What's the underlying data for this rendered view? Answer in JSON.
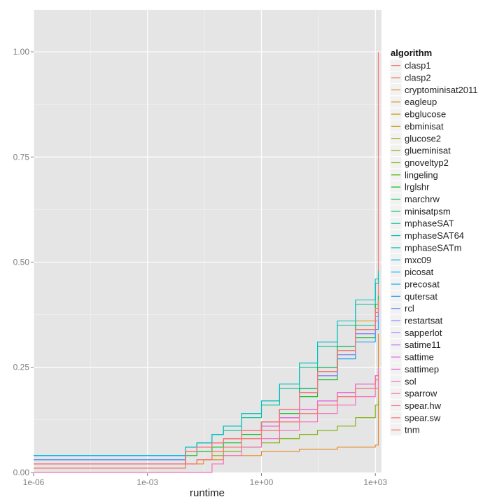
{
  "chart_data": {
    "type": "line",
    "step": true,
    "xlabel": "runtime",
    "ylabel": "",
    "x_scale": "log10",
    "xlim": [
      1e-06,
      1450
    ],
    "ylim": [
      -0.002,
      1.1
    ],
    "x_ticks": [
      {
        "value": 1e-06,
        "label": "1e-06"
      },
      {
        "value": 0.001,
        "label": "1e-03"
      },
      {
        "value": 1,
        "label": "1e+00"
      },
      {
        "value": 1000,
        "label": "1e+03"
      }
    ],
    "y_ticks": [
      {
        "value": 0,
        "label": "0.00"
      },
      {
        "value": 0.25,
        "label": "0.25"
      },
      {
        "value": 0.5,
        "label": "0.50"
      },
      {
        "value": 0.75,
        "label": "0.75"
      },
      {
        "value": 1.0,
        "label": "1.00"
      }
    ],
    "grid": true,
    "background": "#e5e5e5",
    "legend": {
      "title": "algorithm",
      "placement": "right"
    },
    "series": [
      {
        "name": "clasp1",
        "color": "#F8766D",
        "x": [
          1e-06,
          0.01,
          0.02,
          0.05,
          0.1,
          0.3,
          1,
          3,
          10,
          30,
          100,
          300,
          1000,
          1200,
          1200
        ],
        "y": [
          0.02,
          0.05,
          0.06,
          0.07,
          0.08,
          0.1,
          0.12,
          0.15,
          0.2,
          0.25,
          0.3,
          0.36,
          0.4,
          0.42,
          1.0
        ]
      },
      {
        "name": "clasp2",
        "color": "#F17C4A",
        "x": [
          1e-06,
          0.01,
          0.02,
          0.05,
          0.1,
          0.3,
          1,
          3,
          10,
          30,
          100,
          300,
          1000,
          1200
        ],
        "y": [
          0.02,
          0.05,
          0.06,
          0.07,
          0.08,
          0.1,
          0.12,
          0.15,
          0.19,
          0.24,
          0.29,
          0.35,
          0.39,
          0.41
        ]
      },
      {
        "name": "cryptominisat2011",
        "color": "#E7851E",
        "x": [
          1e-06,
          0.01,
          0.03,
          0.1,
          1,
          10,
          100,
          1000,
          1200,
          1200
        ],
        "y": [
          0.01,
          0.02,
          0.03,
          0.04,
          0.05,
          0.055,
          0.06,
          0.065,
          0.07,
          0.33
        ]
      },
      {
        "name": "eagleup",
        "color": "#DB8E00",
        "x": [
          1e-06,
          0.01,
          0.02,
          0.05,
          0.1,
          0.3,
          1,
          3,
          10,
          30,
          100,
          300,
          1000,
          1200
        ],
        "y": [
          0.02,
          0.05,
          0.06,
          0.07,
          0.08,
          0.1,
          0.12,
          0.15,
          0.19,
          0.24,
          0.3,
          0.36,
          0.4,
          0.42
        ]
      },
      {
        "name": "ebglucose",
        "color": "#CD9600",
        "x": [
          1e-06,
          0.01,
          0.02,
          0.05,
          0.1,
          0.3,
          1,
          3,
          10,
          30,
          100,
          300,
          1000,
          1200
        ],
        "y": [
          0.02,
          0.05,
          0.06,
          0.07,
          0.08,
          0.1,
          0.12,
          0.15,
          0.2,
          0.24,
          0.29,
          0.34,
          0.38,
          0.4
        ]
      },
      {
        "name": "ebminisat",
        "color": "#BE9C00",
        "x": [
          1e-06,
          0.01,
          0.02,
          0.05,
          0.1,
          0.3,
          1,
          3,
          10,
          30,
          100,
          300,
          1000,
          1200
        ],
        "y": [
          0.02,
          0.05,
          0.06,
          0.07,
          0.08,
          0.1,
          0.12,
          0.15,
          0.19,
          0.23,
          0.28,
          0.33,
          0.37,
          0.39
        ]
      },
      {
        "name": "glucose2",
        "color": "#ABA300",
        "x": [
          1e-06,
          0.01,
          0.02,
          0.05,
          0.1,
          0.3,
          1,
          3,
          10,
          30,
          100,
          300,
          1000,
          1200
        ],
        "y": [
          0.02,
          0.05,
          0.06,
          0.07,
          0.08,
          0.1,
          0.12,
          0.15,
          0.2,
          0.25,
          0.3,
          0.35,
          0.39,
          0.41
        ]
      },
      {
        "name": "glueminisat",
        "color": "#96A900",
        "x": [
          1e-06,
          0.01,
          0.02,
          0.05,
          0.1,
          0.3,
          1,
          3,
          10,
          30,
          100,
          300,
          1000,
          1200
        ],
        "y": [
          0.02,
          0.05,
          0.06,
          0.07,
          0.08,
          0.1,
          0.12,
          0.15,
          0.2,
          0.24,
          0.29,
          0.34,
          0.38,
          0.4
        ]
      },
      {
        "name": "gnoveltyp2",
        "color": "#7BAE00",
        "x": [
          1e-06,
          0.01,
          0.02,
          0.05,
          0.1,
          0.3,
          1,
          3,
          10,
          30,
          100,
          300,
          1000,
          1200
        ],
        "y": [
          0.01,
          0.02,
          0.03,
          0.04,
          0.05,
          0.06,
          0.07,
          0.08,
          0.09,
          0.1,
          0.11,
          0.13,
          0.16,
          0.17
        ]
      },
      {
        "name": "lingeling",
        "color": "#53B400",
        "x": [
          1e-06,
          0.01,
          0.02,
          0.05,
          0.1,
          0.3,
          1,
          3,
          10,
          30,
          100,
          300,
          1000,
          1200
        ],
        "y": [
          0.02,
          0.05,
          0.06,
          0.07,
          0.08,
          0.1,
          0.12,
          0.15,
          0.2,
          0.25,
          0.3,
          0.35,
          0.4,
          0.42
        ]
      },
      {
        "name": "lrglshr",
        "color": "#00B816",
        "x": [
          1e-06,
          0.01,
          0.02,
          0.05,
          0.1,
          0.3,
          1,
          3,
          10,
          30,
          100,
          300,
          1000,
          1200
        ],
        "y": [
          0.02,
          0.04,
          0.05,
          0.06,
          0.07,
          0.09,
          0.11,
          0.14,
          0.18,
          0.22,
          0.27,
          0.32,
          0.36,
          0.38
        ]
      },
      {
        "name": "marchrw",
        "color": "#00BC51",
        "x": [
          1e-06,
          0.01,
          0.02,
          0.05,
          0.1,
          0.3,
          1,
          3,
          10,
          30,
          100,
          300,
          1000,
          1200
        ],
        "y": [
          0.03,
          0.05,
          0.06,
          0.07,
          0.08,
          0.1,
          0.12,
          0.15,
          0.2,
          0.24,
          0.29,
          0.34,
          0.39,
          0.41
        ]
      },
      {
        "name": "minisatpsm",
        "color": "#00BE74",
        "x": [
          1e-06,
          0.01,
          0.02,
          0.05,
          0.1,
          0.3,
          1,
          3,
          10,
          30,
          100,
          300,
          1000,
          1200
        ],
        "y": [
          0.03,
          0.05,
          0.06,
          0.07,
          0.08,
          0.1,
          0.12,
          0.15,
          0.2,
          0.25,
          0.3,
          0.35,
          0.4,
          0.42
        ]
      },
      {
        "name": "mphaseSAT",
        "color": "#00C092",
        "x": [
          1e-06,
          0.01,
          0.02,
          0.05,
          0.1,
          0.3,
          1,
          3,
          10,
          30,
          100,
          300,
          1000,
          1200
        ],
        "y": [
          0.04,
          0.06,
          0.07,
          0.09,
          0.1,
          0.13,
          0.16,
          0.2,
          0.25,
          0.3,
          0.35,
          0.4,
          0.45,
          0.47
        ]
      },
      {
        "name": "mphaseSAT64",
        "color": "#00C0AC",
        "x": [
          1e-06,
          0.01,
          0.02,
          0.05,
          0.1,
          0.3,
          1,
          3,
          10,
          30,
          100,
          300,
          1000,
          1200
        ],
        "y": [
          0.04,
          0.06,
          0.07,
          0.09,
          0.11,
          0.14,
          0.17,
          0.21,
          0.26,
          0.31,
          0.36,
          0.41,
          0.45,
          0.47
        ]
      },
      {
        "name": "mphaseSATm",
        "color": "#00BEC4",
        "x": [
          1e-06,
          0.01,
          0.02,
          0.05,
          0.1,
          0.3,
          1,
          3,
          10,
          30,
          100,
          300,
          1000,
          1200
        ],
        "y": [
          0.04,
          0.06,
          0.07,
          0.09,
          0.11,
          0.14,
          0.17,
          0.21,
          0.26,
          0.31,
          0.36,
          0.41,
          0.46,
          0.48
        ]
      },
      {
        "name": "mxc09",
        "color": "#00BAD9",
        "x": [
          1e-06,
          0.01,
          0.02,
          0.05,
          0.1,
          0.3,
          1,
          3,
          10,
          30,
          100,
          300,
          1000,
          1200
        ],
        "y": [
          0.03,
          0.05,
          0.06,
          0.07,
          0.08,
          0.1,
          0.12,
          0.15,
          0.19,
          0.23,
          0.28,
          0.33,
          0.37,
          0.39
        ]
      },
      {
        "name": "picosat",
        "color": "#00B3EC",
        "x": [
          1e-06,
          0.01,
          0.02,
          0.05,
          0.1,
          0.3,
          1,
          3,
          10,
          30,
          100,
          300,
          1000,
          1200
        ],
        "y": [
          0.04,
          0.05,
          0.06,
          0.07,
          0.08,
          0.1,
          0.12,
          0.15,
          0.19,
          0.23,
          0.28,
          0.33,
          0.37,
          0.38
        ]
      },
      {
        "name": "precosat",
        "color": "#00A9FA",
        "x": [
          1e-06,
          0.01,
          0.02,
          0.05,
          0.1,
          0.3,
          1,
          3,
          10,
          30,
          100,
          300,
          1000,
          1200
        ],
        "y": [
          0.03,
          0.05,
          0.06,
          0.07,
          0.08,
          0.1,
          0.12,
          0.15,
          0.19,
          0.24,
          0.29,
          0.34,
          0.38,
          0.4
        ]
      },
      {
        "name": "qutersat",
        "color": "#1F9DFF",
        "x": [
          1e-06,
          0.01,
          0.02,
          0.05,
          0.1,
          0.3,
          1,
          3,
          10,
          30,
          100,
          300,
          1000,
          1200
        ],
        "y": [
          0.03,
          0.05,
          0.06,
          0.07,
          0.08,
          0.1,
          0.12,
          0.15,
          0.19,
          0.23,
          0.27,
          0.31,
          0.34,
          0.36
        ]
      },
      {
        "name": "rcl",
        "color": "#6B8FFF",
        "x": [
          1e-06,
          0.01,
          0.02,
          0.05,
          0.1,
          0.3,
          1,
          3,
          10,
          30,
          100,
          300,
          1000,
          1200
        ],
        "y": [
          0.03,
          0.05,
          0.06,
          0.07,
          0.08,
          0.1,
          0.12,
          0.15,
          0.19,
          0.23,
          0.28,
          0.33,
          0.37,
          0.39
        ]
      },
      {
        "name": "restartsat",
        "color": "#9485FF",
        "x": [
          1e-06,
          0.01,
          0.02,
          0.05,
          0.1,
          0.3,
          1,
          3,
          10,
          30,
          100,
          300,
          1000,
          1200
        ],
        "y": [
          0.02,
          0.05,
          0.06,
          0.07,
          0.08,
          0.1,
          0.12,
          0.15,
          0.19,
          0.23,
          0.28,
          0.33,
          0.36,
          0.38
        ]
      },
      {
        "name": "sapperlot",
        "color": "#B37BFF",
        "x": [
          1e-06,
          0.01,
          0.02,
          0.05,
          0.1,
          0.3,
          1,
          3,
          10,
          30,
          100,
          300,
          1000,
          1200
        ],
        "y": [
          0.02,
          0.05,
          0.06,
          0.07,
          0.08,
          0.1,
          0.11,
          0.13,
          0.15,
          0.17,
          0.19,
          0.21,
          0.23,
          0.24
        ]
      },
      {
        "name": "satime11",
        "color": "#CC71F6",
        "x": [
          1e-06,
          0.01,
          0.02,
          0.05,
          0.1,
          0.3,
          1,
          3,
          10,
          30,
          100,
          300,
          1000,
          1200
        ],
        "y": [
          0.02,
          0.05,
          0.06,
          0.07,
          0.08,
          0.1,
          0.11,
          0.13,
          0.15,
          0.17,
          0.19,
          0.21,
          0.23,
          0.25
        ]
      },
      {
        "name": "sattime",
        "color": "#E06AE6",
        "x": [
          1e-06,
          0.01,
          0.02,
          0.05,
          0.1,
          0.3,
          1,
          3,
          10,
          30,
          100,
          300,
          1000,
          1200
        ],
        "y": [
          0.02,
          0.05,
          0.06,
          0.07,
          0.08,
          0.1,
          0.11,
          0.13,
          0.15,
          0.17,
          0.19,
          0.21,
          0.23,
          0.24
        ]
      },
      {
        "name": "sattimep",
        "color": "#EF67D1",
        "x": [
          1e-06,
          0.01,
          0.02,
          0.05,
          0.1,
          0.3,
          1,
          3,
          10,
          30,
          100,
          300,
          1000,
          1200
        ],
        "y": [
          0.02,
          0.05,
          0.06,
          0.07,
          0.08,
          0.1,
          0.11,
          0.13,
          0.15,
          0.17,
          0.19,
          0.21,
          0.23,
          0.25
        ]
      },
      {
        "name": "sol",
        "color": "#F966BA",
        "x": [
          1e-06,
          0.01,
          0.02,
          0.05,
          0.1,
          0.3,
          1,
          3,
          10,
          30,
          100,
          300,
          1000,
          1200
        ],
        "y": [
          0.0,
          0.0,
          0.0,
          0.02,
          0.04,
          0.06,
          0.08,
          0.1,
          0.12,
          0.14,
          0.16,
          0.18,
          0.2,
          0.22
        ]
      },
      {
        "name": "sparrow",
        "color": "#FE69A0",
        "x": [
          1e-06,
          0.01,
          0.02,
          0.05,
          0.1,
          0.3,
          1,
          3,
          10,
          30,
          100,
          300,
          1000,
          1200
        ],
        "y": [
          0.01,
          0.02,
          0.03,
          0.05,
          0.06,
          0.08,
          0.1,
          0.12,
          0.14,
          0.16,
          0.18,
          0.2,
          0.22,
          0.24
        ]
      },
      {
        "name": "spear.hw",
        "color": "#FF6E87",
        "x": [
          1e-06,
          0.01,
          0.02,
          0.05,
          0.1,
          0.3,
          1,
          3,
          10,
          30,
          100,
          300,
          1000,
          1200
        ],
        "y": [
          0.02,
          0.05,
          0.06,
          0.07,
          0.08,
          0.1,
          0.12,
          0.15,
          0.19,
          0.24,
          0.29,
          0.34,
          0.38,
          0.4
        ]
      },
      {
        "name": "spear.sw",
        "color": "#FB756D",
        "x": [
          1e-06,
          0.01,
          0.02,
          0.05,
          0.1,
          0.3,
          1,
          3,
          10,
          30,
          100,
          300,
          1000,
          1200
        ],
        "y": [
          0.02,
          0.05,
          0.06,
          0.07,
          0.08,
          0.1,
          0.12,
          0.15,
          0.19,
          0.24,
          0.29,
          0.34,
          0.39,
          0.41
        ]
      },
      {
        "name": "tnm",
        "color": "#F8766D",
        "x": [
          1e-06,
          0.01,
          0.02,
          0.05,
          0.1,
          0.3,
          1,
          3,
          10,
          30,
          100,
          300,
          1000,
          1200
        ],
        "y": [
          0.01,
          0.02,
          0.03,
          0.05,
          0.06,
          0.08,
          0.1,
          0.12,
          0.14,
          0.16,
          0.18,
          0.2,
          0.22,
          0.24
        ]
      }
    ]
  }
}
